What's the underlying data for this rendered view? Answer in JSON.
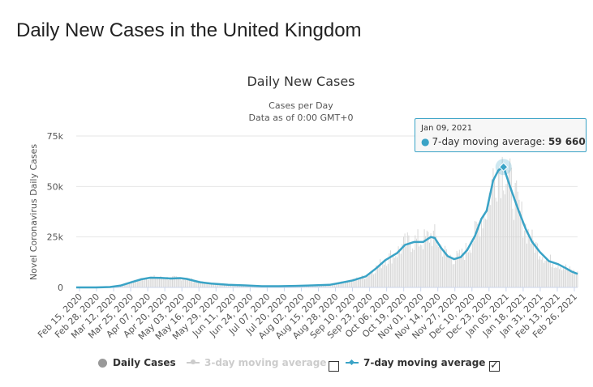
{
  "page": {
    "heading": "Daily New Cases in the United Kingdom"
  },
  "colors": {
    "series_line": "#3aa3c6",
    "bars": "#d0d0d0",
    "grid": "#e6e6e6",
    "legend_dot": "#999999",
    "legend_inactive": "#cccccc"
  },
  "chart_data": {
    "type": "line",
    "title": "Daily New Cases",
    "subtitle": [
      "Cases per Day",
      "Data as of 0:00 GMT+0"
    ],
    "ylabel": "Novel Coronavirus Daily Cases",
    "ylim": [
      0,
      75000
    ],
    "y_ticks": [
      0,
      25000,
      50000,
      75000
    ],
    "y_tick_labels": [
      "0",
      "25k",
      "50k",
      "75k"
    ],
    "x_tick_labels": [
      "Feb 15, 2020",
      "Feb 28, 2020",
      "Mar 12, 2020",
      "Mar 25, 2020",
      "Apr 07, 2020",
      "Apr 20, 2020",
      "May 03, 2020",
      "May 16, 2020",
      "May 29, 2020",
      "Jun 11, 2020",
      "Jun 24, 2020",
      "Jul 07, 2020",
      "Jul 20, 2020",
      "Aug 02, 2020",
      "Aug 15, 2020",
      "Aug 28, 2020",
      "Sep 10, 2020",
      "Sep 23, 2020",
      "Oct 06, 2020",
      "Oct 19, 2020",
      "Nov 01, 2020",
      "Nov 14, 2020",
      "Nov 27, 2020",
      "Dec 10, 2020",
      "Dec 23, 2020",
      "Jan 05, 2021",
      "Jan 18, 2021",
      "Jan 31, 2021",
      "Feb 13, 2021",
      "Feb 26, 2021"
    ],
    "x_start": "Feb 15, 2020",
    "x_end": "Mar 07, 2021",
    "grid": true,
    "series": [
      {
        "name": "7-day moving average",
        "points": [
          [
            "Feb 15, 2020",
            0
          ],
          [
            "Mar 01, 2020",
            10
          ],
          [
            "Mar 12, 2020",
            200
          ],
          [
            "Mar 20, 2020",
            900
          ],
          [
            "Mar 28, 2020",
            2500
          ],
          [
            "Apr 05, 2020",
            4000
          ],
          [
            "Apr 12, 2020",
            4800
          ],
          [
            "Apr 20, 2020",
            4700
          ],
          [
            "Apr 28, 2020",
            4400
          ],
          [
            "May 05, 2020",
            4600
          ],
          [
            "May 10, 2020",
            4200
          ],
          [
            "May 20, 2020",
            2600
          ],
          [
            "May 29, 2020",
            1900
          ],
          [
            "Jun 11, 2020",
            1300
          ],
          [
            "Jun 24, 2020",
            1000
          ],
          [
            "Jul 07, 2020",
            600
          ],
          [
            "Jul 20, 2020",
            600
          ],
          [
            "Aug 02, 2020",
            750
          ],
          [
            "Aug 15, 2020",
            1000
          ],
          [
            "Aug 28, 2020",
            1300
          ],
          [
            "Sep 05, 2020",
            2200
          ],
          [
            "Sep 15, 2020",
            3500
          ],
          [
            "Sep 25, 2020",
            5500
          ],
          [
            "Oct 03, 2020",
            9500
          ],
          [
            "Oct 10, 2020",
            13500
          ],
          [
            "Oct 19, 2020",
            17000
          ],
          [
            "Oct 25, 2020",
            21000
          ],
          [
            "Nov 01, 2020",
            22500
          ],
          [
            "Nov 08, 2020",
            22500
          ],
          [
            "Nov 14, 2020",
            25000
          ],
          [
            "Nov 17, 2020",
            24500
          ],
          [
            "Nov 22, 2020",
            19500
          ],
          [
            "Nov 27, 2020",
            15500
          ],
          [
            "Dec 02, 2020",
            14000
          ],
          [
            "Dec 07, 2020",
            15000
          ],
          [
            "Dec 12, 2020",
            18500
          ],
          [
            "Dec 18, 2020",
            25500
          ],
          [
            "Dec 23, 2020",
            34000
          ],
          [
            "Dec 27, 2020",
            38000
          ],
          [
            "Jan 01, 2021",
            53000
          ],
          [
            "Jan 05, 2021",
            58000
          ],
          [
            "Jan 09, 2021",
            59660
          ],
          [
            "Jan 14, 2021",
            50000
          ],
          [
            "Jan 20, 2021",
            39000
          ],
          [
            "Jan 26, 2021",
            29000
          ],
          [
            "Jan 31, 2021",
            22500
          ],
          [
            "Feb 06, 2021",
            17500
          ],
          [
            "Feb 13, 2021",
            13000
          ],
          [
            "Feb 20, 2021",
            11500
          ],
          [
            "Feb 26, 2021",
            9500
          ],
          [
            "Mar 02, 2021",
            8000
          ],
          [
            "Mar 07, 2021",
            6700
          ]
        ]
      }
    ],
    "tooltip": {
      "date": "Jan 09, 2021",
      "series": "7-day moving average",
      "value_text": "59 660"
    },
    "legend": {
      "placement": "bottom-center",
      "items": [
        {
          "label": "Daily Cases",
          "visible": true
        },
        {
          "label": "3-day moving average",
          "visible": false
        },
        {
          "label": "7-day moving average",
          "visible": true
        }
      ]
    }
  }
}
